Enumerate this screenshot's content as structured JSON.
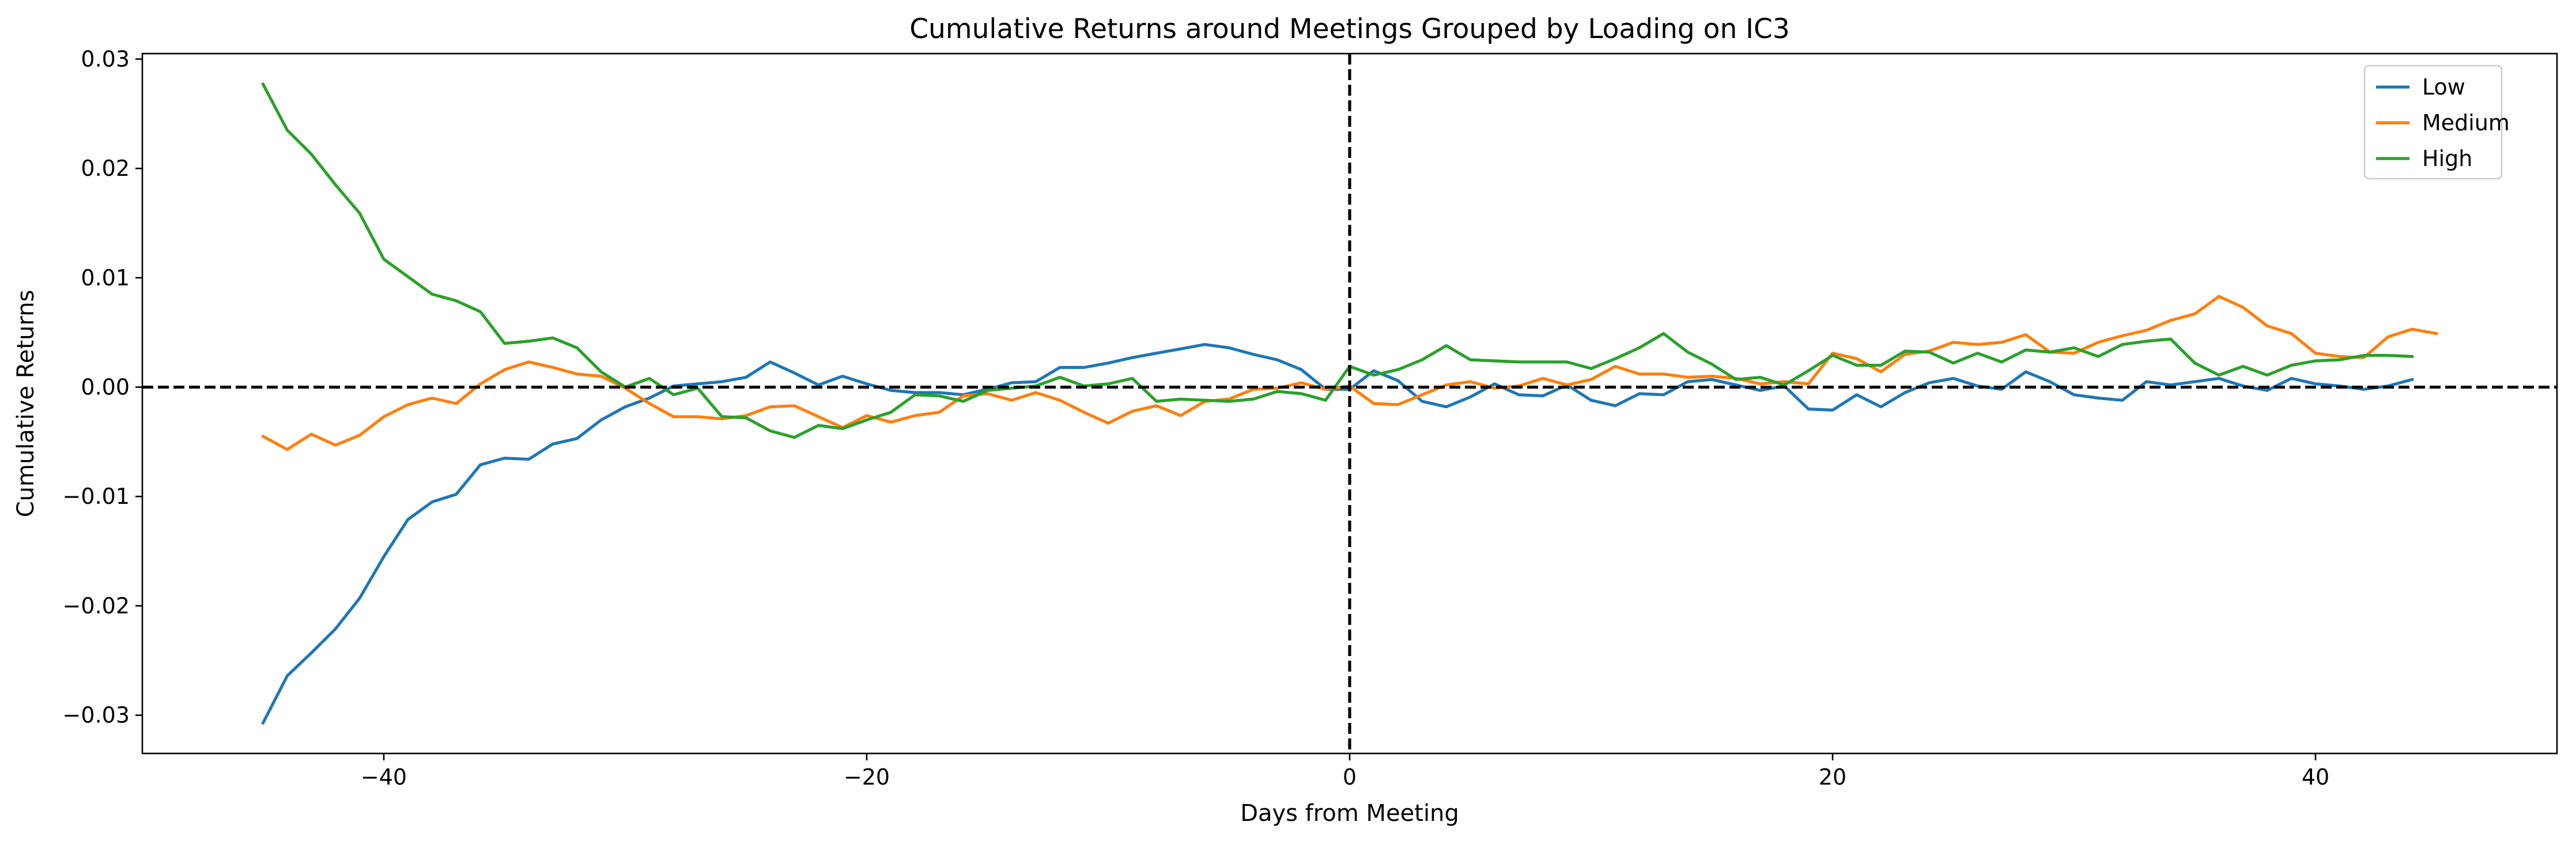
{
  "chart_data": {
    "type": "line",
    "title": "Cumulative Returns around Meetings Grouped by Loading on IC3",
    "xlabel": "Days from Meeting",
    "ylabel": "Cumulative Returns",
    "xlim": [
      -50,
      50
    ],
    "ylim": [
      -0.0335,
      0.0305
    ],
    "xticks": [
      -40,
      -20,
      0,
      20,
      40
    ],
    "xtick_labels": [
      "−40",
      "−20",
      "0",
      "20",
      "40"
    ],
    "yticks": [
      -0.03,
      -0.02,
      -0.01,
      0.0,
      0.01,
      0.02,
      0.03
    ],
    "ytick_labels": [
      "−0.03",
      "−0.02",
      "−0.01",
      "0.00",
      "0.01",
      "0.02",
      "0.03"
    ],
    "grid": false,
    "legend_position": "top-right",
    "reference_lines": [
      {
        "orientation": "horizontal",
        "value": 0,
        "style": "dashed",
        "color": "#000000"
      },
      {
        "orientation": "vertical",
        "value": 0,
        "style": "dashed",
        "color": "#000000"
      }
    ],
    "x_start": -45,
    "series": [
      {
        "name": "Low",
        "color": "#1f77b4",
        "values": [
          -0.0307,
          -0.0264,
          -0.0243,
          -0.0221,
          -0.0193,
          -0.0155,
          -0.0121,
          -0.0105,
          -0.0098,
          -0.0071,
          -0.0065,
          -0.0066,
          -0.0052,
          -0.0047,
          -0.003,
          -0.0018,
          -0.001,
          0.0001,
          0.0003,
          0.0005,
          0.0009,
          0.0023,
          0.0013,
          0.0002,
          0.001,
          0.0003,
          -0.0003,
          -0.0005,
          -0.0005,
          -0.0007,
          -0.0002,
          0.0004,
          0.0005,
          0.0018,
          0.0018,
          0.0022,
          0.0027,
          0.0031,
          0.0035,
          0.0039,
          0.0036,
          0.003,
          0.0025,
          0.0016,
          -0.0002,
          -0.0002,
          0.0015,
          0.0006,
          -0.0013,
          -0.0018,
          -0.0009,
          0.0003,
          -0.0007,
          -0.0008,
          0.0002,
          -0.0012,
          -0.0017,
          -0.0006,
          -0.0007,
          0.0005,
          0.0007,
          0.0002,
          -0.0003,
          0.0001,
          -0.002,
          -0.0021,
          -0.0007,
          -0.0018,
          -0.0005,
          0.0004,
          0.0008,
          0.0001,
          -0.0002,
          0.0014,
          0.0005,
          -0.0007,
          -0.001,
          -0.0012,
          0.0005,
          0.0002,
          0.0005,
          0.0008,
          0.0001,
          -0.0003,
          0.0008,
          0.0003,
          0.0001,
          -0.0002,
          0.0001,
          0.0007
        ]
      },
      {
        "name": "Medium",
        "color": "#ff7f0e",
        "values": [
          -0.0045,
          -0.0057,
          -0.0043,
          -0.0053,
          -0.0044,
          -0.0027,
          -0.0016,
          -0.001,
          -0.0015,
          0.0003,
          0.0016,
          0.0023,
          0.0018,
          0.0012,
          0.001,
          -0.0001,
          -0.0015,
          -0.0027,
          -0.0027,
          -0.0029,
          -0.0026,
          -0.0018,
          -0.0017,
          -0.0027,
          -0.0037,
          -0.0026,
          -0.0032,
          -0.0026,
          -0.0023,
          -0.0008,
          -0.0006,
          -0.0012,
          -0.0005,
          -0.0012,
          -0.0023,
          -0.0033,
          -0.0022,
          -0.0017,
          -0.0026,
          -0.0013,
          -0.0011,
          -0.0002,
          -0.0001,
          0.0004,
          -0.0002,
          0.0001,
          -0.0015,
          -0.0016,
          -0.0007,
          0.0002,
          0.0005,
          -0.0001,
          0.0001,
          0.0008,
          0.0002,
          0.0007,
          0.0019,
          0.0012,
          0.0012,
          0.0009,
          0.001,
          0.0008,
          0.0003,
          0.0005,
          0.0003,
          0.0031,
          0.0026,
          0.0014,
          0.003,
          0.0033,
          0.0041,
          0.0039,
          0.0041,
          0.0048,
          0.0032,
          0.0031,
          0.0041,
          0.0047,
          0.0052,
          0.0061,
          0.0067,
          0.0083,
          0.0073,
          0.0056,
          0.0049,
          0.0031,
          0.0028,
          0.0027,
          0.0046,
          0.0053,
          0.0049
        ]
      },
      {
        "name": "High",
        "color": "#2ca02c",
        "values": [
          0.0277,
          0.0235,
          0.0213,
          0.0185,
          0.0159,
          0.0117,
          0.0101,
          0.0085,
          0.0079,
          0.0069,
          0.004,
          0.0042,
          0.0045,
          0.0036,
          0.0014,
          0.0,
          0.0008,
          -0.0007,
          -0.0001,
          -0.0027,
          -0.0028,
          -0.004,
          -0.0046,
          -0.0035,
          -0.0038,
          -0.003,
          -0.0023,
          -0.0007,
          -0.0008,
          -0.0013,
          -0.0003,
          -0.0001,
          0.0001,
          0.0009,
          0.0001,
          0.0003,
          0.0008,
          -0.0013,
          -0.0011,
          -0.0012,
          -0.0013,
          -0.0011,
          -0.0004,
          -0.0006,
          -0.0012,
          0.0019,
          0.0011,
          0.0016,
          0.0025,
          0.0038,
          0.0025,
          0.0024,
          0.0023,
          0.0023,
          0.0023,
          0.0017,
          0.0026,
          0.0036,
          0.0049,
          0.0032,
          0.0021,
          0.0007,
          0.0009,
          0.0002,
          0.0015,
          0.0029,
          0.002,
          0.002,
          0.0033,
          0.0032,
          0.0022,
          0.0031,
          0.0023,
          0.0034,
          0.0032,
          0.0036,
          0.0028,
          0.0039,
          0.0042,
          0.0044,
          0.0022,
          0.0011,
          0.0019,
          0.0011,
          0.002,
          0.0024,
          0.0025,
          0.0029,
          0.0029,
          0.0028
        ]
      }
    ]
  }
}
